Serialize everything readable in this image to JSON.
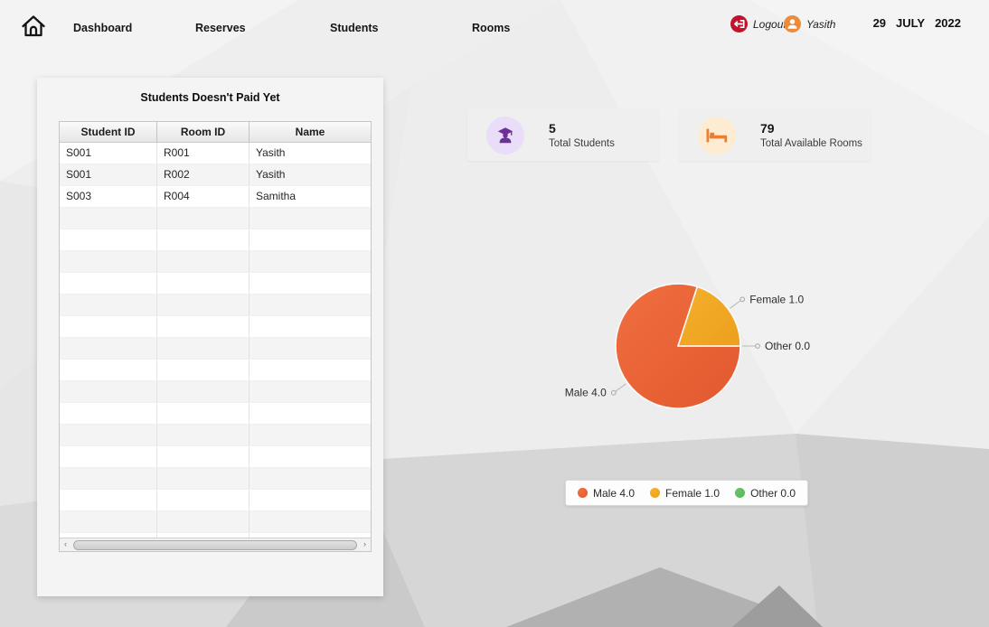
{
  "nav": {
    "items": [
      "Dashboard",
      "Reserves",
      "Students",
      "Rooms"
    ],
    "logout_label": "Logout",
    "user_name": "Yasith",
    "date": {
      "day": "29",
      "month": "JULY",
      "year": "2022"
    }
  },
  "unpaid_panel": {
    "title": "Students Doesn't Paid Yet",
    "columns": [
      "Student ID",
      "Room ID",
      "Name"
    ],
    "rows": [
      [
        "S001",
        "R001",
        "Yasith"
      ],
      [
        "S001",
        "R002",
        "Yasith"
      ],
      [
        "S003",
        "R004",
        "Samitha"
      ]
    ],
    "visible_empty_rows": 16,
    "scrollbar": {
      "left_arrow": "‹",
      "right_arrow": "›"
    }
  },
  "stat_cards": [
    {
      "value": "5",
      "label": "Total Students",
      "icon": "graduate-student-icon",
      "icon_color": "#6d3099",
      "circle_bg": "#e9ddfa"
    },
    {
      "value": "79",
      "label": "Total Available Rooms",
      "icon": "bed-icon",
      "icon_color": "#ed7d31",
      "circle_bg": "#fdecd2"
    }
  ],
  "chart_data": {
    "type": "pie",
    "categories": [
      "Male",
      "Female",
      "Other"
    ],
    "values": [
      4.0,
      1.0,
      0.0
    ],
    "slice_colors": [
      "#e2582e",
      "#eca01d",
      "#57b757"
    ],
    "slice_colors_light": [
      "#f06f40",
      "#f5b02b",
      "#6ac26a"
    ],
    "value_decimals": 1,
    "start": "east",
    "direction": "clockwise",
    "labels_visible": true,
    "legend_position": "bottom-center"
  }
}
